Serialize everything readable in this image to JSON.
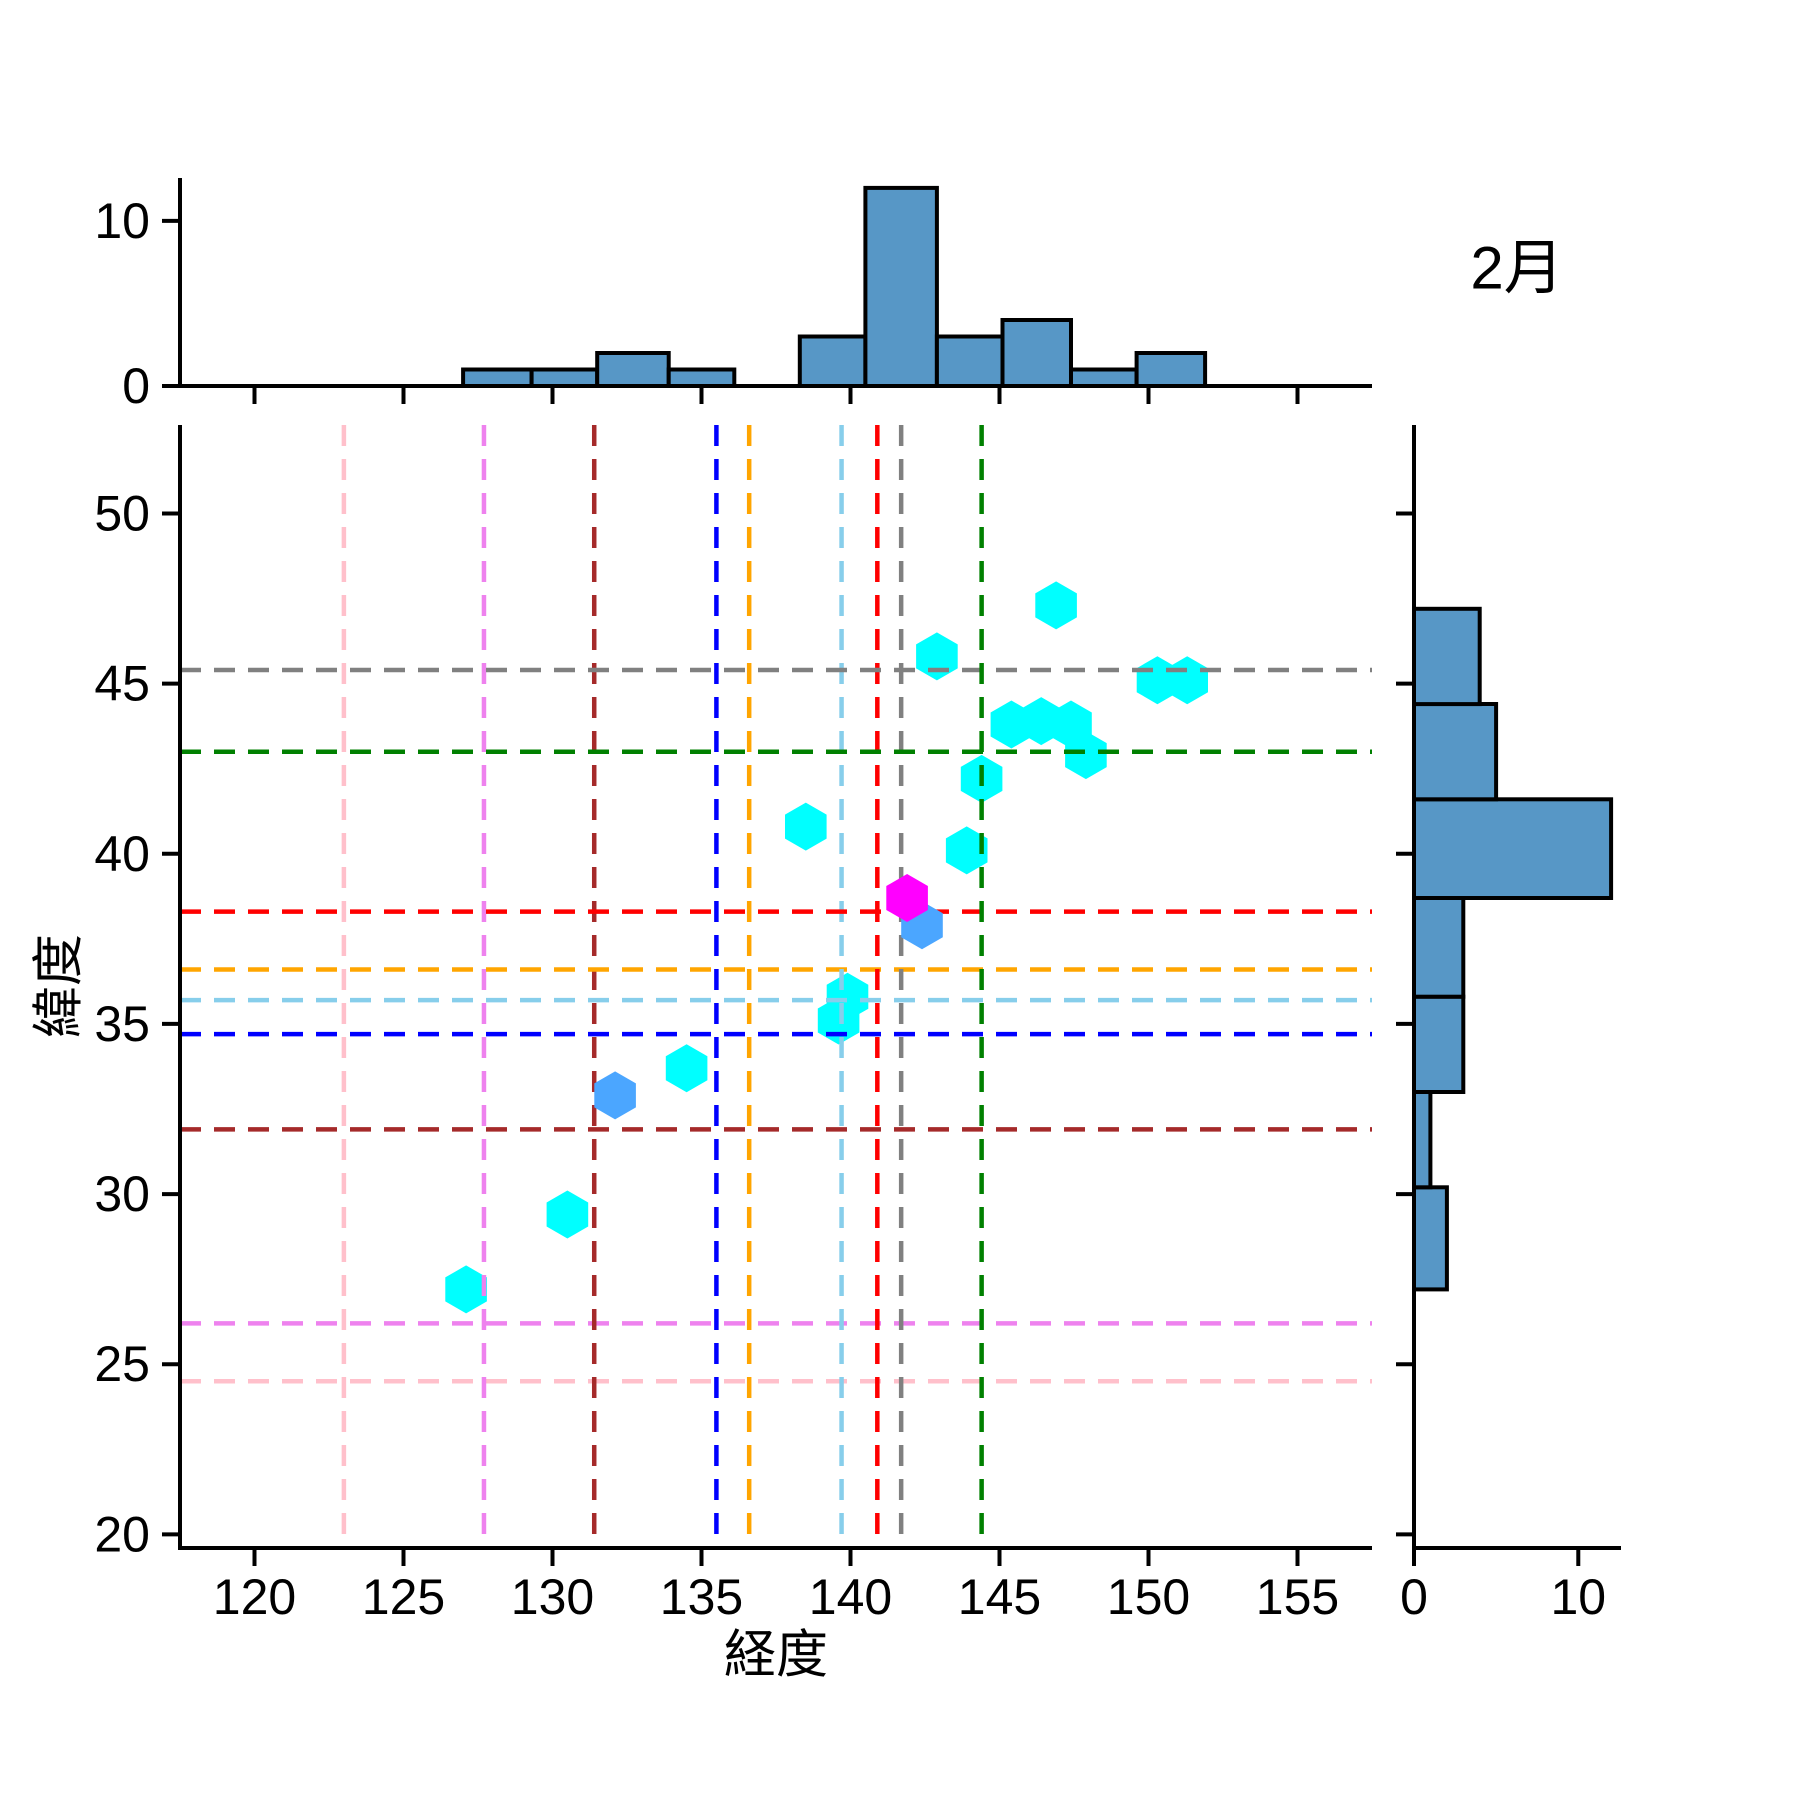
{
  "figure": {
    "title": "2月",
    "xlabel": "経度",
    "ylabel": "緯度",
    "background": "#ffffff"
  },
  "colors": {
    "hist_fill": "#5797c6",
    "hist_edge": "#000000",
    "axis": "#000000",
    "point_cyan": "#00ffff",
    "point_blue": "#4ba6ff",
    "point_magenta": "#ff00ff"
  },
  "chart_data": [
    {
      "type": "scatter",
      "name": "main-scatter",
      "title": "2月",
      "xlabel": "経度",
      "ylabel": "緯度",
      "marker": "hexagon",
      "grid": false,
      "xlim": [
        117.5,
        157.5
      ],
      "ylim": [
        19.6,
        52.6
      ],
      "x_ticks": [
        "120",
        "125",
        "130",
        "135",
        "140",
        "145",
        "150",
        "155"
      ],
      "x_tick_values": [
        120,
        125,
        130,
        135,
        140,
        145,
        150,
        155
      ],
      "y_ticks": [
        "20",
        "25",
        "30",
        "35",
        "40",
        "45",
        "50"
      ],
      "y_tick_values": [
        20,
        25,
        30,
        35,
        40,
        45,
        50
      ],
      "series": [
        {
          "name": "points-cyan",
          "color": "#00ffff",
          "points": [
            [
              127.1,
              27.2
            ],
            [
              130.5,
              29.4
            ],
            [
              134.5,
              33.7
            ],
            [
              138.5,
              40.8
            ],
            [
              139.6,
              35.1
            ],
            [
              139.9,
              35.8
            ],
            [
              142.9,
              45.8
            ],
            [
              143.9,
              40.1
            ],
            [
              144.4,
              42.2
            ],
            [
              145.4,
              43.8
            ],
            [
              146.4,
              43.9
            ],
            [
              146.9,
              47.3
            ],
            [
              147.4,
              43.8
            ],
            [
              147.9,
              42.9
            ],
            [
              150.3,
              45.1
            ],
            [
              151.3,
              45.1
            ]
          ]
        },
        {
          "name": "points-blue",
          "color": "#4ba6ff",
          "points": [
            [
              132.1,
              32.9
            ],
            [
              142.4,
              37.9
            ]
          ]
        },
        {
          "name": "points-magenta",
          "color": "#ff00ff",
          "points": [
            [
              141.9,
              38.7
            ]
          ]
        }
      ],
      "reference_lines": [
        {
          "name": "pink",
          "color": "#ffc0cb",
          "lon": 123.0,
          "lat": 24.5
        },
        {
          "name": "violet",
          "color": "#ee82ee",
          "lon": 127.7,
          "lat": 26.2
        },
        {
          "name": "brown",
          "color": "#a52a2a",
          "lon": 131.4,
          "lat": 31.9
        },
        {
          "name": "blue",
          "color": "#0000ff",
          "lon": 135.5,
          "lat": 34.7
        },
        {
          "name": "orange",
          "color": "#ffa500",
          "lon": 136.6,
          "lat": 36.6
        },
        {
          "name": "skyblue",
          "color": "#87ceeb",
          "lon": 139.7,
          "lat": 35.7
        },
        {
          "name": "red",
          "color": "#ff0000",
          "lon": 140.9,
          "lat": 38.3
        },
        {
          "name": "gray",
          "color": "#808080",
          "lon": 141.7,
          "lat": 45.4
        },
        {
          "name": "green",
          "color": "#008000",
          "lon": 144.4,
          "lat": 43.0
        }
      ]
    },
    {
      "type": "bar",
      "name": "top-histogram",
      "orientation": "vertical",
      "axis": "longitude",
      "bin_edges": [
        127.0,
        129.3,
        131.5,
        133.9,
        136.1,
        138.3,
        140.5,
        142.9,
        145.1,
        147.4,
        149.6,
        151.9
      ],
      "counts": [
        1,
        1,
        2,
        1,
        0,
        3,
        12,
        3,
        4,
        1,
        2
      ],
      "y_ticks": [
        "0",
        "10"
      ],
      "y_tick_values": [
        0,
        10
      ],
      "ylim": [
        0,
        12.6
      ]
    },
    {
      "type": "bar",
      "name": "right-histogram",
      "orientation": "horizontal",
      "axis": "latitude",
      "bin_edges": [
        27.2,
        30.2,
        33.0,
        35.8,
        38.7,
        41.6,
        44.4,
        47.2
      ],
      "counts": [
        2,
        1,
        3,
        3,
        12,
        5,
        4
      ],
      "x_ticks": [
        "0",
        "10"
      ],
      "x_tick_values": [
        0,
        10
      ],
      "xlim": [
        0,
        12.6
      ]
    }
  ]
}
